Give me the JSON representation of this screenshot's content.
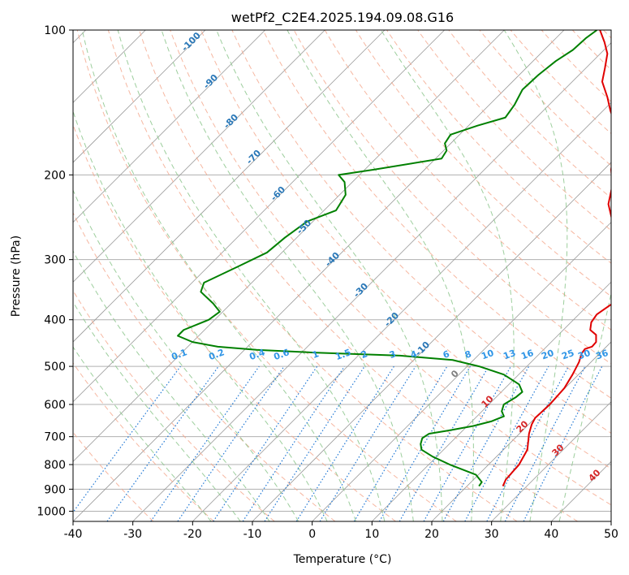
{
  "chart_data": {
    "type": "line",
    "title": "wetPf2_C2E4.2025.194.09.08.G16",
    "xlabel": "Temperature (°C)",
    "ylabel": "Pressure (hPa)",
    "xlim": [
      -40,
      50
    ],
    "ylim": [
      1050,
      100
    ],
    "y_scale": "log",
    "skew": true,
    "x_ticks": [
      -40,
      -30,
      -20,
      -10,
      0,
      10,
      20,
      30,
      40,
      50
    ],
    "y_ticks": [
      100,
      200,
      300,
      400,
      500,
      600,
      700,
      800,
      900,
      1000
    ],
    "grid": true,
    "colors": {
      "temperature": "#e00000",
      "dewpoint": "#008000",
      "dry_adiabat": "#f4a58a",
      "moist_adiabat": "#8cc68c",
      "mixing_ratio": "#1f77d4",
      "isotherm": "#9a9a9a",
      "axes": "#000000"
    },
    "series": [
      {
        "points": [
          {
            "p": 887,
            "t": 26.0
          },
          {
            "p": 860,
            "t": 25.4
          },
          {
            "p": 800,
            "t": 25.1
          },
          {
            "p": 745,
            "t": 24.0
          },
          {
            "p": 710,
            "t": 22.5
          },
          {
            "p": 690,
            "t": 21.6
          },
          {
            "p": 660,
            "t": 20.5
          },
          {
            "p": 640,
            "t": 20.0
          },
          {
            "p": 600,
            "t": 20.2
          },
          {
            "p": 555,
            "t": 19.9
          },
          {
            "p": 520,
            "t": 19.0
          },
          {
            "p": 490,
            "t": 18.0
          },
          {
            "p": 470,
            "t": 17.0
          },
          {
            "p": 460,
            "t": 16.8
          },
          {
            "p": 455,
            "t": 17.6
          },
          {
            "p": 445,
            "t": 17.5
          },
          {
            "p": 430,
            "t": 16.3
          },
          {
            "p": 420,
            "t": 14.5
          },
          {
            "p": 405,
            "t": 13.4
          },
          {
            "p": 390,
            "t": 13.0
          },
          {
            "p": 375,
            "t": 13.6
          },
          {
            "p": 362,
            "t": 14.2
          },
          {
            "p": 350,
            "t": 13.0
          },
          {
            "p": 330,
            "t": 9.8
          },
          {
            "p": 300,
            "t": 6.5
          },
          {
            "p": 275,
            "t": 3.4
          },
          {
            "p": 250,
            "t": 0.1
          },
          {
            "p": 230,
            "t": -3.5
          },
          {
            "p": 210,
            "t": -6.0
          },
          {
            "p": 195,
            "t": -8.8
          },
          {
            "p": 180,
            "t": -11.2
          },
          {
            "p": 165,
            "t": -14.0
          },
          {
            "p": 155,
            "t": -16.3
          },
          {
            "p": 147,
            "t": -18.8
          },
          {
            "p": 138,
            "t": -21.5
          },
          {
            "p": 128,
            "t": -25.0
          },
          {
            "p": 120,
            "t": -26.8
          },
          {
            "p": 112,
            "t": -28.8
          },
          {
            "p": 106,
            "t": -31.2
          },
          {
            "p": 100,
            "t": -34.0
          }
        ]
      },
      {
        "points": [
          {
            "p": 887,
            "t": 22.0
          },
          {
            "p": 870,
            "t": 21.8
          },
          {
            "p": 840,
            "t": 19.6
          },
          {
            "p": 800,
            "t": 13.5
          },
          {
            "p": 770,
            "t": 9.3
          },
          {
            "p": 745,
            "t": 6.3
          },
          {
            "p": 725,
            "t": 5.2
          },
          {
            "p": 705,
            "t": 4.5
          },
          {
            "p": 690,
            "t": 4.9
          },
          {
            "p": 680,
            "t": 7.5
          },
          {
            "p": 665,
            "t": 11.0
          },
          {
            "p": 650,
            "t": 13.3
          },
          {
            "p": 635,
            "t": 14.5
          },
          {
            "p": 620,
            "t": 13.3
          },
          {
            "p": 600,
            "t": 12.5
          },
          {
            "p": 580,
            "t": 13.3
          },
          {
            "p": 565,
            "t": 13.5
          },
          {
            "p": 545,
            "t": 11.7
          },
          {
            "p": 520,
            "t": 7.5
          },
          {
            "p": 500,
            "t": 2.0
          },
          {
            "p": 485,
            "t": -3.5
          },
          {
            "p": 475,
            "t": -13.0
          },
          {
            "p": 468,
            "t": -28.0
          },
          {
            "p": 462,
            "t": -38.0
          },
          {
            "p": 455,
            "t": -45.0
          },
          {
            "p": 445,
            "t": -50.0
          },
          {
            "p": 432,
            "t": -53.5
          },
          {
            "p": 420,
            "t": -53.5
          },
          {
            "p": 400,
            "t": -51.0
          },
          {
            "p": 385,
            "t": -50.5
          },
          {
            "p": 370,
            "t": -53.0
          },
          {
            "p": 350,
            "t": -57.0
          },
          {
            "p": 335,
            "t": -58.0
          },
          {
            "p": 310,
            "t": -55.0
          },
          {
            "p": 290,
            "t": -52.5
          },
          {
            "p": 270,
            "t": -52.0
          },
          {
            "p": 250,
            "t": -51.0
          },
          {
            "p": 237,
            "t": -48.0
          },
          {
            "p": 220,
            "t": -49.0
          },
          {
            "p": 207,
            "t": -51.3
          },
          {
            "p": 200,
            "t": -53.5
          },
          {
            "p": 195,
            "t": -48.5
          },
          {
            "p": 185,
            "t": -39.0
          },
          {
            "p": 178,
            "t": -39.5
          },
          {
            "p": 172,
            "t": -41.0
          },
          {
            "p": 165,
            "t": -41.5
          },
          {
            "p": 158,
            "t": -38.5
          },
          {
            "p": 152,
            "t": -35.2
          },
          {
            "p": 143,
            "t": -35.8
          },
          {
            "p": 133,
            "t": -37.0
          },
          {
            "p": 124,
            "t": -36.8
          },
          {
            "p": 116,
            "t": -36.2
          },
          {
            "p": 110,
            "t": -35.2
          },
          {
            "p": 104,
            "t": -35.0
          },
          {
            "p": 100,
            "t": -34.5
          }
        ]
      }
    ],
    "dry_adiabat_labels": [
      "-100",
      "-90",
      "-80",
      "-70",
      "-60",
      "-50",
      "-40",
      "-30",
      "-20",
      "-10",
      "0",
      "10",
      "20",
      "30",
      "40"
    ],
    "mixing_ratio_labels": [
      "0.1",
      "0.2",
      "0.4",
      "0.6",
      "1",
      "1.5",
      "2",
      "3",
      "4",
      "6",
      "8",
      "10",
      "13",
      "16",
      "20",
      "25",
      "30",
      "36"
    ]
  }
}
